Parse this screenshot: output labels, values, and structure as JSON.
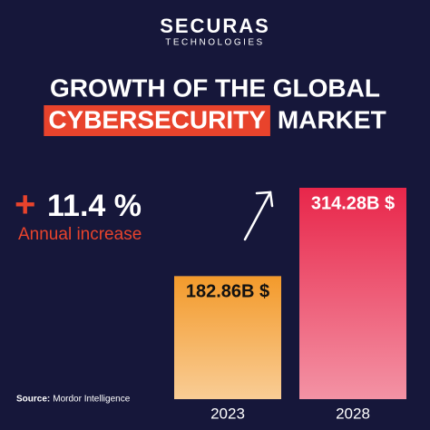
{
  "chart_data": {
    "type": "bar",
    "brand": "SECURAS",
    "tagline": "TECHNOLOGIES",
    "title": [
      "GROWTH OF THE GLOBAL",
      "CYBERSECURITY",
      "MARKET"
    ],
    "growth": {
      "sign": "+",
      "value": "11.4 %",
      "label": "Annual increase"
    },
    "categories": [
      "2023",
      "2028"
    ],
    "values": [
      182.86,
      314.28
    ],
    "value_labels": [
      "182.86B $",
      "314.28B $"
    ],
    "colors": [
      "#f39a2b",
      "#e8264a"
    ],
    "source_label": "Source:",
    "source": "Mordor Intelligence"
  }
}
